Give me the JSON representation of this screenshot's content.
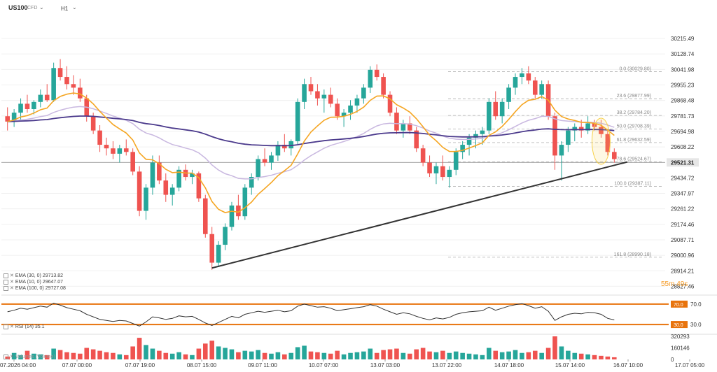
{
  "header": {
    "symbol": "US100",
    "contract": "CFD",
    "timeframe": "H1"
  },
  "legend": [
    {
      "label": "EMA (30, 0)",
      "value": "29713.82"
    },
    {
      "label": "EMA (10, 0)",
      "value": "29647.07"
    },
    {
      "label": "EMA (100, 0)",
      "value": "29727.08"
    }
  ],
  "rsi_legend": {
    "label": "RSI (14)",
    "value": "35.1"
  },
  "volume_legend": {
    "label": "Volumes (Volume)",
    "value": ""
  },
  "countdown": {
    "minutes": "55",
    "m": "m",
    "seconds": "49",
    "s": "s"
  },
  "colors": {
    "up": "#26a69a",
    "down": "#ef5350",
    "ema10": "#f5a623",
    "ema30": "#c9b8e0",
    "ema100": "#4b3a8c",
    "rsi_line": "#333333",
    "rsi_band": "#e8730c",
    "trendline": "#333333",
    "fib": "#b0b0b0",
    "highlight": "#f7d24a"
  },
  "chart_data": [
    {
      "type": "candlestick",
      "title": "US100 H1",
      "y_ticks": [
        30215.49,
        30128.74,
        30041.98,
        29955.23,
        29868.48,
        29781.73,
        29694.98,
        29608.22,
        29521.31,
        29434.72,
        29347.97,
        29261.22,
        29174.46,
        29087.71,
        29000.96,
        28914.21,
        28827.46
      ],
      "y_tick_labels": [
        "30215.49",
        "30128.74",
        "30041.98",
        "29955.23",
        "29868.48",
        "29781.73",
        "29694.98",
        "29608.22",
        "29521.31",
        "29434.72",
        "29347.97",
        "29261.22",
        "29174.46",
        "29087.71",
        "29000.96",
        "28914.21",
        "28827.46"
      ],
      "ylim": [
        28790,
        30290
      ],
      "current_price": 29521.31,
      "current_price_label": "29521.31",
      "x_labels": [
        "06.07.2026 04:00",
        "07.07 00:00",
        "07.07 19:00",
        "08.07 15:00",
        "09.07 11:00",
        "10.07 07:00",
        "13.07 03:00",
        "13.07 22:00",
        "14.07 18:00",
        "15.07 14:00",
        "16.07 10:00",
        "17.07 05:00"
      ],
      "candles": [
        [
          29780,
          29830,
          29700,
          29750
        ],
        [
          29750,
          29820,
          29720,
          29800
        ],
        [
          29800,
          29880,
          29760,
          29850
        ],
        [
          29850,
          29900,
          29800,
          29820
        ],
        [
          29820,
          29870,
          29790,
          29860
        ],
        [
          29860,
          29930,
          29830,
          29900
        ],
        [
          29900,
          29960,
          29860,
          29870
        ],
        [
          29870,
          30080,
          29860,
          30050
        ],
        [
          30050,
          30100,
          29980,
          30000
        ],
        [
          30000,
          30060,
          29930,
          29960
        ],
        [
          29960,
          30010,
          29900,
          29940
        ],
        [
          29940,
          29990,
          29860,
          29880
        ],
        [
          29880,
          29900,
          29750,
          29780
        ],
        [
          29780,
          29800,
          29680,
          29700
        ],
        [
          29700,
          29730,
          29580,
          29620
        ],
        [
          29620,
          29660,
          29560,
          29600
        ],
        [
          29600,
          29640,
          29540,
          29570
        ],
        [
          29570,
          29620,
          29520,
          29600
        ],
        [
          29600,
          29650,
          29560,
          29580
        ],
        [
          29580,
          29600,
          29450,
          29470
        ],
        [
          29470,
          29500,
          29220,
          29250
        ],
        [
          29250,
          29400,
          29200,
          29380
        ],
        [
          29380,
          29560,
          29340,
          29520
        ],
        [
          29520,
          29560,
          29400,
          29420
        ],
        [
          29420,
          29460,
          29300,
          29340
        ],
        [
          29340,
          29400,
          29280,
          29380
        ],
        [
          29380,
          29500,
          29360,
          29480
        ],
        [
          29480,
          29510,
          29420,
          29440
        ],
        [
          29440,
          29480,
          29400,
          29460
        ],
        [
          29460,
          29470,
          29300,
          29320
        ],
        [
          29320,
          29340,
          29100,
          29120
        ],
        [
          29120,
          29160,
          28920,
          28960
        ],
        [
          28960,
          29080,
          28940,
          29060
        ],
        [
          29060,
          29180,
          29030,
          29160
        ],
        [
          29160,
          29300,
          29140,
          29280
        ],
        [
          29280,
          29340,
          29200,
          29220
        ],
        [
          29220,
          29400,
          29200,
          29380
        ],
        [
          29380,
          29460,
          29340,
          29440
        ],
        [
          29440,
          29560,
          29420,
          29540
        ],
        [
          29540,
          29600,
          29500,
          29520
        ],
        [
          29520,
          29580,
          29480,
          29560
        ],
        [
          29560,
          29640,
          29530,
          29620
        ],
        [
          29620,
          29680,
          29580,
          29600
        ],
        [
          29600,
          29650,
          29560,
          29640
        ],
        [
          29640,
          29880,
          29620,
          29860
        ],
        [
          29860,
          29990,
          29820,
          29960
        ],
        [
          29960,
          30000,
          29900,
          29920
        ],
        [
          29920,
          29960,
          29840,
          29880
        ],
        [
          29880,
          29930,
          29800,
          29900
        ],
        [
          29900,
          29940,
          29830,
          29850
        ],
        [
          29850,
          29880,
          29760,
          29780
        ],
        [
          29780,
          29820,
          29720,
          29800
        ],
        [
          29800,
          29870,
          29760,
          29840
        ],
        [
          29840,
          29900,
          29800,
          29880
        ],
        [
          29880,
          29960,
          29850,
          29940
        ],
        [
          29940,
          30060,
          29910,
          30040
        ],
        [
          30040,
          30070,
          29980,
          30000
        ],
        [
          30000,
          30020,
          29880,
          29900
        ],
        [
          29900,
          29920,
          29780,
          29800
        ],
        [
          29800,
          29830,
          29680,
          29700
        ],
        [
          29700,
          29760,
          29660,
          29740
        ],
        [
          29740,
          29780,
          29680,
          29700
        ],
        [
          29700,
          29720,
          29580,
          29600
        ],
        [
          29600,
          29620,
          29500,
          29520
        ],
        [
          29520,
          29560,
          29440,
          29460
        ],
        [
          29460,
          29520,
          29400,
          29500
        ],
        [
          29500,
          29560,
          29420,
          29440
        ],
        [
          29440,
          29500,
          29380,
          29480
        ],
        [
          29480,
          29600,
          29450,
          29580
        ],
        [
          29580,
          29640,
          29540,
          29620
        ],
        [
          29620,
          29680,
          29560,
          29660
        ],
        [
          29660,
          29700,
          29600,
          29680
        ],
        [
          29680,
          29720,
          29620,
          29700
        ],
        [
          29700,
          29880,
          29680,
          29860
        ],
        [
          29860,
          29920,
          29760,
          29780
        ],
        [
          29780,
          29880,
          29740,
          29860
        ],
        [
          29860,
          29960,
          29820,
          29940
        ],
        [
          29940,
          30020,
          29900,
          30000
        ],
        [
          30000,
          30050,
          29960,
          30020
        ],
        [
          30020,
          30060,
          29960,
          29980
        ],
        [
          29980,
          30000,
          29880,
          29900
        ],
        [
          29900,
          29980,
          29880,
          29960
        ],
        [
          29960,
          29980,
          29760,
          29780
        ],
        [
          29780,
          29800,
          29480,
          29560
        ],
        [
          29560,
          29640,
          29420,
          29620
        ],
        [
          29620,
          29720,
          29580,
          29700
        ],
        [
          29700,
          29740,
          29640,
          29720
        ],
        [
          29720,
          29760,
          29660,
          29700
        ],
        [
          29700,
          29780,
          29680,
          29740
        ],
        [
          29740,
          29760,
          29700,
          29720
        ],
        [
          29720,
          29760,
          29660,
          29680
        ],
        [
          29680,
          29700,
          29560,
          29580
        ],
        [
          29580,
          29600,
          29520,
          29540
        ]
      ],
      "ema": [
        {
          "name": "EMA (10, 0)",
          "value_label": "29647.07"
        },
        {
          "name": "EMA (30, 0)",
          "value_label": "29713.82"
        },
        {
          "name": "EMA (100, 0)",
          "value_label": "29727.08"
        }
      ],
      "fibonacci": [
        {
          "label": "0.0 (30029.80)",
          "price": 30029.8
        },
        {
          "label": "23.6 (29877.99)",
          "price": 29877.99
        },
        {
          "label": "38.2 (29784.20)",
          "price": 29784.2
        },
        {
          "label": "50.0 (29708.39)",
          "price": 29708.39
        },
        {
          "label": "61.8 (29632.59)",
          "price": 29632.59
        },
        {
          "label": "78.6 (29524.67)",
          "price": 29524.67
        },
        {
          "label": "100.0 (29387.11)",
          "price": 29387.11
        },
        {
          "label": "161.8 (28990.18)",
          "price": 28990.18
        }
      ],
      "trendline": [
        [
          31,
          28930
        ],
        [
          94,
          29524
        ]
      ]
    },
    {
      "type": "line",
      "title": "RSI (14)",
      "ylim": [
        15,
        85
      ],
      "levels": [
        {
          "label": "70.0",
          "value": 70
        },
        {
          "label": "30.0",
          "value": 30
        }
      ],
      "y_tick_labels": [
        "70.0",
        "30.0"
      ],
      "values": [
        55,
        58,
        62,
        60,
        63,
        66,
        64,
        72,
        68,
        63,
        60,
        57,
        50,
        45,
        40,
        38,
        36,
        38,
        37,
        32,
        27,
        35,
        45,
        43,
        40,
        42,
        47,
        45,
        46,
        40,
        33,
        28,
        34,
        40,
        46,
        43,
        50,
        53,
        56,
        54,
        56,
        58,
        55,
        57,
        66,
        70,
        67,
        64,
        65,
        62,
        57,
        59,
        61,
        63,
        65,
        69,
        66,
        60,
        55,
        50,
        53,
        51,
        46,
        42,
        39,
        43,
        41,
        44,
        50,
        53,
        55,
        56,
        57,
        64,
        58,
        62,
        66,
        69,
        71,
        67,
        62,
        65,
        56,
        38,
        45,
        50,
        52,
        51,
        54,
        53,
        50,
        42,
        39
      ]
    },
    {
      "type": "bar",
      "title": "Volumes (Volume)",
      "y_ticks": [
        320293,
        160146,
        0
      ],
      "y_tick_labels": [
        "320293",
        "160146",
        "0"
      ],
      "ylim": [
        0,
        330000
      ],
      "values": [
        40000,
        90000,
        60000,
        120000,
        80000,
        70000,
        60000,
        150000,
        130000,
        100000,
        90000,
        80000,
        160000,
        140000,
        120000,
        100000,
        90000,
        70000,
        60000,
        180000,
        300000,
        200000,
        150000,
        120000,
        90000,
        80000,
        100000,
        70000,
        60000,
        150000,
        220000,
        260000,
        180000,
        160000,
        140000,
        100000,
        120000,
        110000,
        130000,
        90000,
        80000,
        100000,
        70000,
        90000,
        170000,
        190000,
        110000,
        100000,
        90000,
        80000,
        120000,
        70000,
        90000,
        100000,
        110000,
        150000,
        90000,
        130000,
        140000,
        150000,
        90000,
        80000,
        140000,
        160000,
        110000,
        100000,
        120000,
        90000,
        110000,
        90000,
        80000,
        70000,
        60000,
        160000,
        120000,
        100000,
        110000,
        130000,
        90000,
        100000,
        120000,
        90000,
        160000,
        320000,
        180000,
        120000,
        90000,
        80000,
        70000,
        60000,
        50000,
        40000,
        30000
      ]
    }
  ]
}
